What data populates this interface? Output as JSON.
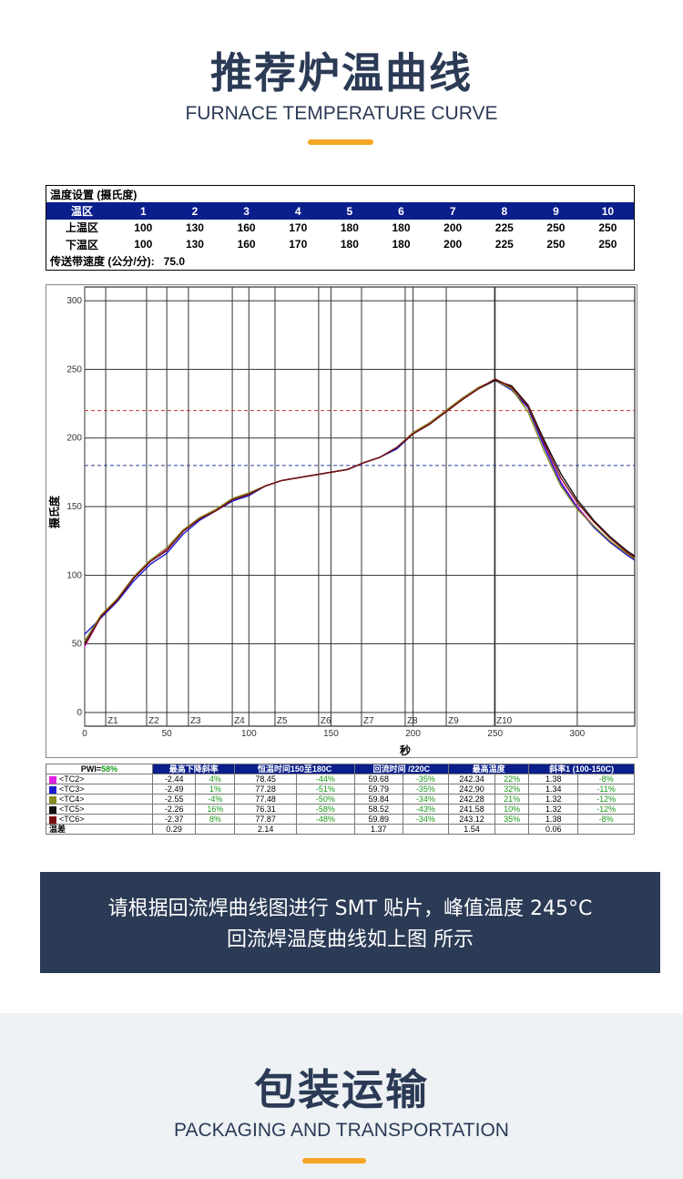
{
  "header": {
    "title": "推荐炉温曲线",
    "subtitle": "FURNACE TEMPERATURE CURVE"
  },
  "settings": {
    "title": "温度设置 (摄氏度)",
    "header": [
      "温区",
      "1",
      "2",
      "3",
      "4",
      "5",
      "6",
      "7",
      "8",
      "9",
      "10"
    ],
    "rows": [
      {
        "label": "上温区",
        "values": [
          "100",
          "130",
          "160",
          "170",
          "180",
          "180",
          "200",
          "225",
          "250",
          "250"
        ]
      },
      {
        "label": "下温区",
        "values": [
          "100",
          "130",
          "160",
          "170",
          "180",
          "180",
          "200",
          "225",
          "250",
          "250"
        ]
      }
    ],
    "speed_label": "传送带速度 (公分/分):",
    "speed": "75.0"
  },
  "chart_data": {
    "type": "line",
    "x_label": "秒",
    "y_label": "摄氏度",
    "xlim": [
      0,
      335
    ],
    "xticks": [
      0,
      50,
      100,
      150,
      200,
      250,
      300
    ],
    "ylim": [
      -10,
      310
    ],
    "yticks": [
      0,
      50,
      100,
      150,
      200,
      250,
      300
    ],
    "grid": true,
    "zones": [
      {
        "label": "Z1",
        "x": 12.8
      },
      {
        "label": "Z2",
        "x": 37.7
      },
      {
        "label": "Z3",
        "x": 63.2
      },
      {
        "label": "Z4",
        "x": 89.9
      },
      {
        "label": "Z5",
        "x": 115.9
      },
      {
        "label": "Z6",
        "x": 142.5
      },
      {
        "label": "Z7",
        "x": 168.6
      },
      {
        "label": "Z8",
        "x": 195.2
      },
      {
        "label": "Z9",
        "x": 220.2
      },
      {
        "label": "Z10",
        "x": 249.6
      }
    ],
    "reference_lines": [
      {
        "value": 220,
        "color": "#c0392b"
      },
      {
        "value": 180,
        "color": "#2c3e9e"
      }
    ],
    "x": [
      0,
      10,
      20,
      30,
      40,
      50,
      60,
      70,
      80,
      90,
      100,
      110,
      120,
      130,
      140,
      150,
      160,
      170,
      180,
      190,
      200,
      210,
      220,
      230,
      240,
      250,
      260,
      270,
      280,
      290,
      300,
      310,
      320,
      330,
      335
    ],
    "series": [
      {
        "name": "<TC2>",
        "color": "#e020e0",
        "values": [
          48,
          70,
          83,
          99,
          111,
          119,
          133,
          141,
          148,
          155,
          159,
          165,
          169,
          171,
          173,
          175,
          177,
          182,
          186,
          193,
          204,
          211,
          220,
          229,
          237,
          242,
          237,
          224,
          194,
          168,
          150,
          136,
          124,
          115,
          111
        ]
      },
      {
        "name": "<TC3>",
        "color": "#1a1ad0",
        "values": [
          57,
          69,
          81,
          96,
          108,
          116,
          130,
          140,
          147,
          154,
          158,
          165,
          169,
          171,
          173,
          175,
          177,
          182,
          186,
          192,
          203,
          210,
          219,
          228,
          236,
          242,
          235,
          222,
          193,
          167,
          149,
          135,
          124,
          115,
          111
        ]
      },
      {
        "name": "<TC4>",
        "color": "#8a8a20",
        "values": [
          52,
          71,
          83,
          99,
          111,
          120,
          133,
          142,
          148,
          156,
          160,
          165,
          169,
          171,
          173,
          175,
          177,
          182,
          186,
          193,
          204,
          211,
          220,
          229,
          237,
          242,
          236,
          219,
          190,
          165,
          148,
          136,
          125,
          116,
          112
        ]
      },
      {
        "name": "<TC5>",
        "color": "#111111",
        "values": [
          50,
          70,
          82,
          98,
          110,
          118,
          132,
          141,
          147,
          155,
          159,
          165,
          169,
          171,
          173,
          175,
          177,
          182,
          186,
          193,
          203,
          210,
          219,
          228,
          236,
          242,
          238,
          224,
          198,
          174,
          155,
          140,
          128,
          118,
          114
        ]
      },
      {
        "name": "<TC6>",
        "color": "#7a1010",
        "values": [
          49,
          70,
          82,
          98,
          110,
          118,
          132,
          141,
          147,
          155,
          159,
          165,
          169,
          171,
          173,
          175,
          177,
          182,
          186,
          193,
          203,
          210,
          219,
          228,
          236,
          243,
          237,
          223,
          196,
          171,
          153,
          139,
          127,
          117,
          113
        ]
      }
    ]
  },
  "stats": {
    "pwi_label": "PWI=",
    "pwi": "58%",
    "columns": [
      "最高下降斜率",
      "恒温时间150至180C",
      "回流时间 /220C",
      "最高温度",
      "斜率1 (100-150C)"
    ],
    "rows": [
      [
        "-2.44",
        "4%",
        "78.45",
        "-44%",
        "59.68",
        "-35%",
        "242.34",
        "22%",
        "1.38",
        "-8%"
      ],
      [
        "-2.49",
        "1%",
        "77.28",
        "-51%",
        "59.79",
        "-35%",
        "242.90",
        "32%",
        "1.34",
        "-11%"
      ],
      [
        "-2.55",
        "-4%",
        "77.48",
        "-50%",
        "59.84",
        "-34%",
        "242.28",
        "21%",
        "1.32",
        "-12%"
      ],
      [
        "-2.26",
        "16%",
        "76.31",
        "-58%",
        "58.52",
        "-43%",
        "241.58",
        "10%",
        "1.32",
        "-12%"
      ],
      [
        "-2.37",
        "8%",
        "77.87",
        "-48%",
        "59.89",
        "-34%",
        "243.12",
        "35%",
        "1.38",
        "-8%"
      ]
    ],
    "delta": {
      "label": "温差",
      "cells": [
        "0.29",
        "2.14",
        "1.37",
        "1.54",
        "0.06"
      ]
    }
  },
  "caption": {
    "lines": [
      "请根据回流焊曲线图进行 SMT 贴片，峰值温度 245°C",
      "回流焊温度曲线如上图 所示"
    ]
  },
  "footer": {
    "title": "包装运输",
    "subtitle": "PACKAGING AND TRANSPORTATION"
  }
}
